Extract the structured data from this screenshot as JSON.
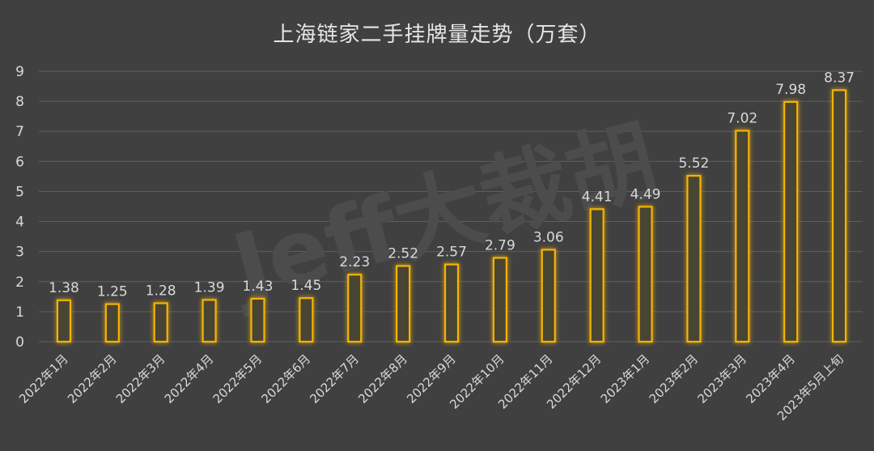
{
  "chart_data": {
    "type": "bar",
    "title": "上海链家二手挂牌量走势（万套）",
    "xlabel": "",
    "ylabel": "",
    "ylim": [
      0,
      9
    ],
    "yticks": [
      "0",
      "1",
      "2",
      "3",
      "4",
      "5",
      "6",
      "7",
      "8",
      "9"
    ],
    "grid": true,
    "categories": [
      "2022年1月",
      "2022年2月",
      "2022年3月",
      "2022年4月",
      "2022年5月",
      "2022年6月",
      "2022年7月",
      "2022年8月",
      "2022年9月",
      "2022年10月",
      "2022年11月",
      "2022年12月",
      "2023年1月",
      "2023年2月",
      "2023年3月",
      "2023年4月",
      "2023年5月上旬"
    ],
    "values": [
      1.38,
      1.25,
      1.28,
      1.39,
      1.43,
      1.45,
      2.23,
      2.52,
      2.57,
      2.79,
      3.06,
      4.41,
      4.49,
      5.52,
      7.02,
      7.98,
      8.37
    ],
    "labels": [
      "1.38",
      "1.25",
      "1.28",
      "1.39",
      "1.43",
      "1.45",
      "2.23",
      "2.52",
      "2.57",
      "2.79",
      "3.06",
      "4.41",
      "4.49",
      "5.52",
      "7.02",
      "7.98",
      "8.37"
    ],
    "bar_color": "#f5b400",
    "bar_fill": "#4a4536",
    "grid_color": "#5e5e5e",
    "text_color": "#d9d9d9",
    "watermark": "Jeff大裁胡"
  }
}
